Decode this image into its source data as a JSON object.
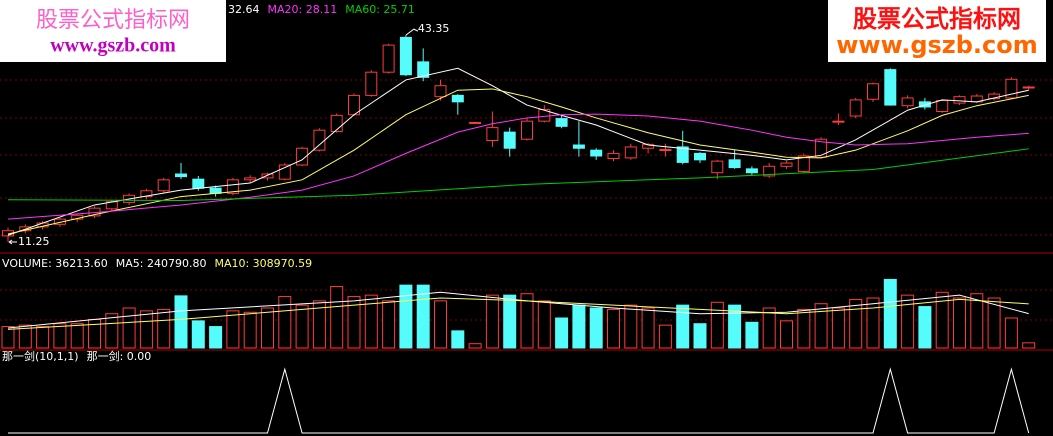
{
  "watermarks": [
    {
      "title": "股票公式指标网",
      "url": "www.gszb.com"
    },
    {
      "title": "股票公式指标网",
      "url": "www.gszb.com"
    }
  ],
  "chart_data": [
    {
      "type": "candlestick",
      "legend": [
        {
          "label": "32.64",
          "color": "#ffffff"
        },
        {
          "label": "MA20: 28.11",
          "color": "#ff33ff"
        },
        {
          "label": "MA60: 25.71",
          "color": "#00d000"
        }
      ],
      "up_color": "#ff3b3b",
      "down_color": "#54fcfc",
      "candles": [
        [
          12.2,
          13.5,
          11.25,
          13.0
        ],
        [
          13.0,
          14.0,
          12.6,
          13.6
        ],
        [
          13.6,
          14.5,
          13.2,
          14.2
        ],
        [
          14.0,
          15.0,
          13.6,
          14.8
        ],
        [
          14.8,
          15.6,
          14.3,
          15.4
        ],
        [
          15.3,
          16.8,
          15.0,
          16.5
        ],
        [
          16.4,
          17.8,
          16.0,
          17.5
        ],
        [
          17.4,
          18.8,
          17.0,
          18.5
        ],
        [
          18.3,
          19.5,
          17.9,
          19.2
        ],
        [
          19.2,
          21.2,
          18.8,
          20.9
        ],
        [
          21.8,
          23.5,
          21.0,
          21.4
        ],
        [
          21.0,
          21.5,
          19.2,
          19.6
        ],
        [
          19.6,
          20.0,
          18.3,
          18.8
        ],
        [
          18.8,
          21.2,
          18.5,
          20.9
        ],
        [
          20.9,
          21.6,
          20.5,
          21.2
        ],
        [
          21.2,
          22.0,
          20.8,
          21.8
        ],
        [
          21.0,
          23.5,
          20.8,
          23.2
        ],
        [
          23.2,
          26.0,
          23.0,
          25.8
        ],
        [
          25.5,
          28.9,
          25.3,
          28.6
        ],
        [
          28.4,
          31.2,
          28.2,
          30.9
        ],
        [
          31.0,
          34.3,
          30.8,
          34.0
        ],
        [
          34.0,
          37.9,
          33.8,
          37.6
        ],
        [
          37.6,
          42.0,
          37.4,
          41.8
        ],
        [
          43.0,
          43.35,
          37.0,
          37.2
        ],
        [
          39.2,
          41.3,
          36.2,
          36.8
        ],
        [
          33.8,
          36.4,
          33.2,
          35.5
        ],
        [
          34.0,
          34.2,
          31.0,
          33.0
        ],
        [
          29.8,
          29.9,
          29.7,
          29.8
        ],
        [
          27.0,
          31.5,
          26.0,
          29.0
        ],
        [
          28.3,
          29.0,
          24.5,
          25.8
        ],
        [
          27.2,
          30.5,
          27.0,
          30.0
        ],
        [
          30.0,
          32.5,
          29.8,
          31.8
        ],
        [
          30.4,
          31.0,
          28.9,
          29.2
        ],
        [
          26.3,
          30.0,
          24.5,
          25.8
        ],
        [
          25.5,
          25.8,
          24.0,
          24.6
        ],
        [
          24.2,
          25.5,
          23.8,
          25.0
        ],
        [
          24.3,
          26.5,
          24.0,
          26.0
        ],
        [
          25.8,
          26.6,
          25.0,
          26.4
        ],
        [
          25.5,
          26.5,
          24.5,
          25.6
        ],
        [
          26.0,
          28.5,
          23.3,
          23.6
        ],
        [
          25.0,
          25.2,
          23.5,
          24.0
        ],
        [
          22.0,
          24.0,
          21.0,
          23.8
        ],
        [
          24.0,
          25.6,
          22.6,
          22.8
        ],
        [
          22.6,
          23.0,
          21.6,
          22.0
        ],
        [
          21.5,
          23.5,
          21.2,
          23.0
        ],
        [
          23.0,
          23.8,
          22.6,
          23.5
        ],
        [
          22.2,
          25.0,
          22.0,
          24.6
        ],
        [
          24.4,
          27.5,
          24.2,
          27.2
        ],
        [
          30.0,
          31.2,
          29.4,
          30.0
        ],
        [
          30.8,
          33.6,
          30.5,
          33.3
        ],
        [
          33.4,
          36.0,
          33.0,
          35.8
        ],
        [
          38.0,
          38.2,
          32.4,
          32.5
        ],
        [
          32.4,
          34.0,
          32.0,
          33.6
        ],
        [
          33.0,
          33.6,
          31.8,
          32.2
        ],
        [
          31.5,
          33.4,
          31.3,
          33.2
        ],
        [
          32.8,
          34.0,
          32.5,
          33.8
        ],
        [
          33.0,
          34.2,
          32.8,
          33.9
        ],
        [
          33.5,
          34.5,
          33.2,
          34.2
        ],
        [
          33.6,
          36.8,
          33.4,
          36.5
        ],
        [
          35.2,
          35.5,
          34.8,
          35.3
        ]
      ],
      "ma_lines": [
        {
          "color": "#ffffff",
          "x": [
            0,
            5,
            10,
            14,
            17,
            20,
            23,
            26,
            28,
            30,
            32,
            34,
            37,
            40,
            43,
            45,
            47,
            49,
            52,
            54,
            56,
            59
          ],
          "values": [
            12.3,
            17.0,
            19.3,
            20.4,
            24.0,
            31.0,
            36.4,
            38.2,
            35.5,
            32.5,
            30.9,
            29.4,
            26.3,
            25.5,
            24.7,
            24.0,
            24.7,
            27.1,
            31.7,
            33.3,
            33.0,
            34.8
          ]
        },
        {
          "color": "#ffff66",
          "x": [
            0,
            5,
            10,
            14,
            17,
            20,
            23,
            26,
            28,
            30,
            32,
            34,
            37,
            40,
            43,
            45,
            47,
            49,
            52,
            54,
            56,
            59
          ],
          "values": [
            12.5,
            15.5,
            18.3,
            19.3,
            20.9,
            25.5,
            31.0,
            34.8,
            35.0,
            33.8,
            32.2,
            30.5,
            28.2,
            26.3,
            25.2,
            24.4,
            24.3,
            25.5,
            28.5,
            30.9,
            32.4,
            34.0
          ]
        },
        {
          "color": "#ff33ff",
          "x": [
            0,
            5,
            10,
            14,
            17,
            20,
            23,
            26,
            28,
            30,
            32,
            34,
            37,
            40,
            43,
            45,
            47,
            49,
            52,
            54,
            56,
            59
          ],
          "values": [
            14.8,
            15.8,
            17.0,
            18.2,
            19.3,
            21.5,
            25.0,
            28.3,
            29.6,
            30.5,
            31.0,
            31.1,
            30.8,
            30.0,
            28.6,
            27.5,
            26.8,
            26.3,
            26.5,
            27.0,
            27.5,
            28.11
          ]
        },
        {
          "color": "#00d000",
          "x": [
            0,
            10,
            20,
            30,
            40,
            50,
            59
          ],
          "values": [
            17.8,
            17.7,
            18.5,
            20.2,
            21.2,
            22.5,
            25.71
          ]
        }
      ],
      "high_mark": 43.35,
      "low_mark": 11.25,
      "ylim": [
        9.7,
        48.8
      ]
    },
    {
      "type": "volume",
      "legend": [
        {
          "label": "VOLUME: 36213.60",
          "color": "#ffffff"
        },
        {
          "label": "MA5: 240790.80",
          "color": "#ffffff"
        },
        {
          "label": "MA10: 308970.59",
          "color": "#ffff66"
        }
      ],
      "values": [
        150000,
        160000,
        150000,
        170000,
        170000,
        200000,
        240000,
        280000,
        260000,
        270000,
        365000,
        190000,
        150000,
        260000,
        250000,
        280000,
        360000,
        300000,
        330000,
        430000,
        360000,
        370000,
        330000,
        440000,
        440000,
        330000,
        120000,
        30000,
        370000,
        370000,
        380000,
        330000,
        210000,
        300000,
        280000,
        270000,
        300000,
        280000,
        160000,
        300000,
        170000,
        320000,
        300000,
        180000,
        280000,
        190000,
        270000,
        310000,
        280000,
        340000,
        350000,
        480000,
        370000,
        290000,
        390000,
        350000,
        380000,
        350000,
        210000,
        36213.6
      ],
      "ma_lines": [
        {
          "color": "#ffffff",
          "x": [
            0,
            10,
            20,
            25,
            30,
            35,
            40,
            45,
            50,
            55,
            59
          ],
          "values": [
            140000,
            260000,
            330000,
            390000,
            330000,
            280000,
            240000,
            250000,
            310000,
            370000,
            240790.8
          ]
        },
        {
          "color": "#ffff66",
          "x": [
            0,
            10,
            20,
            25,
            30,
            35,
            40,
            45,
            50,
            55,
            59
          ],
          "values": [
            130000,
            200000,
            300000,
            350000,
            330000,
            300000,
            270000,
            240000,
            280000,
            340000,
            308970.59
          ]
        }
      ],
      "ylim": [
        0,
        630000
      ]
    },
    {
      "type": "line",
      "legend": [
        {
          "label": "那一剑(10,1,1)",
          "color": "#ffffff"
        },
        {
          "label": "那一剑: 0.00",
          "color": "#ffffff"
        }
      ],
      "color": "#ffffff",
      "values": [
        0,
        0,
        0,
        0,
        0,
        0,
        0,
        0,
        0,
        0,
        0,
        0,
        0,
        0,
        0,
        0,
        1,
        0,
        0,
        0,
        0,
        0,
        0,
        0,
        0,
        0,
        0,
        0,
        0,
        0,
        0,
        0,
        0,
        0,
        0,
        0,
        0,
        0,
        0,
        0,
        0,
        0,
        0,
        0,
        0,
        0,
        0,
        0,
        0,
        0,
        0,
        1,
        0,
        0,
        0,
        0,
        0,
        0,
        1,
        0
      ],
      "ylim": [
        0,
        1.05
      ]
    }
  ]
}
